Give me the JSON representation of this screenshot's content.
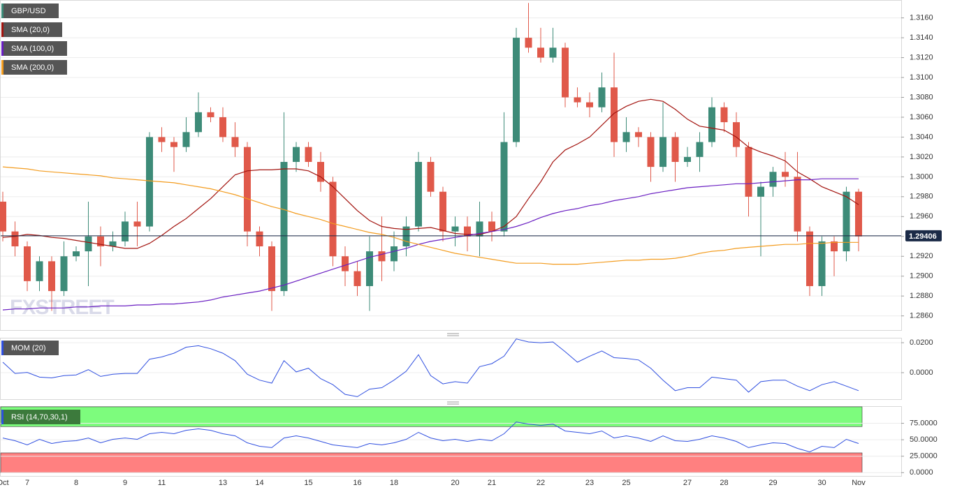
{
  "chart_data": [
    {
      "type": "candlestick",
      "title": "GBP/USD",
      "watermark": "FXSTREET",
      "categories": [
        "Oct",
        null,
        "7",
        null,
        null,
        null,
        "8",
        null,
        null,
        null,
        "9",
        null,
        null,
        "11",
        null,
        null,
        null,
        null,
        "13",
        null,
        null,
        "14",
        null,
        null,
        null,
        "15",
        null,
        null,
        null,
        "16",
        null,
        null,
        "18",
        null,
        null,
        null,
        null,
        "20",
        null,
        null,
        "21",
        null,
        null,
        null,
        "22",
        null,
        null,
        null,
        "23",
        null,
        null,
        "25",
        null,
        null,
        null,
        null,
        "27",
        null,
        null,
        "28",
        null,
        null,
        null,
        "29",
        null,
        null,
        null,
        "30",
        null,
        null,
        "Nov"
      ],
      "open": [
        1.2975,
        1.2945,
        1.293,
        1.2895,
        1.2915,
        1.2885,
        1.292,
        1.2925,
        1.294,
        1.293,
        1.2935,
        1.2955,
        1.295,
        1.304,
        1.3035,
        1.303,
        1.3045,
        1.3065,
        1.306,
        1.304,
        1.303,
        1.2945,
        1.293,
        1.2885,
        1.3015,
        1.303,
        1.3015,
        1.2995,
        1.292,
        1.2905,
        1.289,
        1.2925,
        1.2915,
        1.293,
        1.295,
        1.3015,
        1.2985,
        1.2945,
        1.295,
        1.294,
        1.2955,
        1.2945,
        1.3035,
        1.314,
        1.313,
        1.312,
        1.313,
        1.308,
        1.3075,
        1.307,
        1.309,
        1.3035,
        1.3045,
        1.304,
        1.301,
        1.304,
        1.3015,
        1.302,
        1.3035,
        1.307,
        1.3055,
        1.303,
        1.298,
        1.299,
        1.3005,
        1.3,
        1.2945,
        1.289,
        1.2935,
        1.2925,
        1.2985
      ],
      "high": [
        1.2985,
        1.2955,
        1.2935,
        1.292,
        1.292,
        1.2935,
        1.293,
        1.2975,
        1.295,
        1.2945,
        1.2965,
        1.2975,
        1.3045,
        1.305,
        1.304,
        1.306,
        1.3085,
        1.307,
        1.307,
        1.3055,
        1.3035,
        1.295,
        1.2935,
        1.3065,
        1.3035,
        1.3035,
        1.3025,
        1.3,
        1.293,
        1.2915,
        1.294,
        1.296,
        1.2945,
        1.296,
        1.3025,
        1.302,
        1.299,
        1.296,
        1.296,
        1.2975,
        1.2965,
        1.3065,
        1.315,
        1.3175,
        1.315,
        1.315,
        1.3135,
        1.309,
        1.3085,
        1.3105,
        1.3125,
        1.306,
        1.305,
        1.3045,
        1.3075,
        1.3045,
        1.303,
        1.3045,
        1.308,
        1.3075,
        1.3065,
        1.3035,
        1.2995,
        1.301,
        1.3025,
        1.3025,
        1.295,
        1.294,
        1.294,
        1.299,
        1.2988
      ],
      "low": [
        1.2935,
        1.292,
        1.2885,
        1.2885,
        1.2865,
        1.288,
        1.2915,
        1.289,
        1.291,
        1.2925,
        1.293,
        1.293,
        1.2945,
        1.3025,
        1.3005,
        1.3025,
        1.304,
        1.3055,
        1.3035,
        1.302,
        1.293,
        1.292,
        1.2865,
        1.288,
        1.3005,
        1.301,
        1.2985,
        1.291,
        1.289,
        1.288,
        1.2865,
        1.2895,
        1.2905,
        1.292,
        1.2945,
        1.298,
        1.2935,
        1.293,
        1.2925,
        1.292,
        1.2935,
        1.294,
        1.303,
        1.3125,
        1.3115,
        1.3115,
        1.307,
        1.307,
        1.306,
        1.3065,
        1.302,
        1.3025,
        1.303,
        1.2995,
        1.3005,
        1.2995,
        1.301,
        1.3005,
        1.303,
        1.3045,
        1.302,
        1.296,
        1.292,
        1.298,
        1.299,
        1.2935,
        1.288,
        1.288,
        1.29,
        1.2915,
        1.2925
      ],
      "close": [
        1.2945,
        1.293,
        1.2895,
        1.2915,
        1.2885,
        1.292,
        1.2925,
        1.294,
        1.293,
        1.2935,
        1.2955,
        1.295,
        1.304,
        1.3035,
        1.303,
        1.3045,
        1.3065,
        1.306,
        1.304,
        1.303,
        1.2945,
        1.293,
        1.2885,
        1.3015,
        1.303,
        1.3015,
        1.2995,
        1.292,
        1.2905,
        1.289,
        1.2925,
        1.2915,
        1.293,
        1.295,
        1.3015,
        1.2985,
        1.2945,
        1.295,
        1.294,
        1.2955,
        1.2945,
        1.3035,
        1.314,
        1.313,
        1.312,
        1.313,
        1.308,
        1.3075,
        1.307,
        1.309,
        1.3035,
        1.3045,
        1.304,
        1.301,
        1.304,
        1.3015,
        1.302,
        1.3035,
        1.307,
        1.3055,
        1.303,
        1.298,
        1.299,
        1.3005,
        1.3,
        1.2945,
        1.289,
        1.2935,
        1.2925,
        1.2985,
        1.294
      ],
      "up_color": "#3d8b78",
      "down_color": "#e0594a",
      "series": [
        {
          "name": "SMA (20,0)",
          "color": "#a3140f",
          "values": [
            1.2939,
            1.294,
            1.2942,
            1.2941,
            1.2939,
            1.2938,
            1.2936,
            1.2934,
            1.2932,
            1.293,
            1.2928,
            1.2928,
            1.2933,
            1.2941,
            1.295,
            1.2958,
            1.2968,
            1.2978,
            1.299,
            1.3002,
            1.3006,
            1.3007,
            1.3007,
            1.3008,
            1.3008,
            1.3006,
            1.3,
            1.299,
            1.2978,
            1.2966,
            1.2956,
            1.295,
            1.2948,
            1.2947,
            1.2948,
            1.2949,
            1.2946,
            1.2943,
            1.2942,
            1.2942,
            1.2945,
            1.295,
            1.296,
            1.2978,
            1.2995,
            1.3015,
            1.3027,
            1.3033,
            1.304,
            1.3052,
            1.3064,
            1.3071,
            1.3076,
            1.3078,
            1.3076,
            1.3068,
            1.3058,
            1.3051,
            1.3049,
            1.3047,
            1.304,
            1.303,
            1.3025,
            1.3021,
            1.3016,
            1.3005,
            1.2998,
            1.299,
            1.2985,
            1.298,
            1.2972
          ]
        },
        {
          "name": "SMA (100,0)",
          "color": "#6a1fc2",
          "values": [
            1.2866,
            1.2867,
            1.2867,
            1.2868,
            1.2868,
            1.2868,
            1.2869,
            1.2869,
            1.287,
            1.287,
            1.287,
            1.2871,
            1.2871,
            1.2872,
            1.2872,
            1.2873,
            1.2874,
            1.2876,
            1.2879,
            1.2881,
            1.2883,
            1.2885,
            1.2888,
            1.2891,
            1.2895,
            1.2899,
            1.2903,
            1.2907,
            1.2911,
            1.2915,
            1.2919,
            1.2922,
            1.2925,
            1.2928,
            1.2932,
            1.2935,
            1.2937,
            1.2939,
            1.2941,
            1.2943,
            1.2945,
            1.2947,
            1.295,
            1.2954,
            1.2959,
            1.2963,
            1.2966,
            1.2968,
            1.2971,
            1.2973,
            1.2976,
            1.2978,
            1.298,
            1.2983,
            1.2985,
            1.2987,
            1.2989,
            1.299,
            1.2991,
            1.2992,
            1.2993,
            1.2993,
            1.2994,
            1.2995,
            1.2996,
            1.2997,
            1.2997,
            1.2998,
            1.2998,
            1.2998,
            1.2998
          ]
        },
        {
          "name": "SMA (200,0)",
          "color": "#f39c1f",
          "values": [
            1.301,
            1.3009,
            1.3008,
            1.3006,
            1.3005,
            1.3004,
            1.3003,
            1.3002,
            1.3001,
            1.2999,
            1.2998,
            1.2997,
            1.2996,
            1.2995,
            1.2994,
            1.2992,
            1.299,
            1.2988,
            1.2985,
            1.2982,
            1.2978,
            1.2974,
            1.297,
            1.2967,
            1.2963,
            1.296,
            1.2957,
            1.2953,
            1.295,
            1.2947,
            1.2944,
            1.2942,
            1.2939,
            1.2935,
            1.2932,
            1.2929,
            1.2926,
            1.2923,
            1.2921,
            1.2919,
            1.2917,
            1.2915,
            1.2913,
            1.2913,
            1.2913,
            1.2912,
            1.2912,
            1.2912,
            1.2913,
            1.2914,
            1.2915,
            1.2916,
            1.2916,
            1.2917,
            1.2917,
            1.2918,
            1.292,
            1.2923,
            1.2925,
            1.2926,
            1.2928,
            1.2929,
            1.293,
            1.2931,
            1.2932,
            1.2932,
            1.2933,
            1.2933,
            1.2934,
            1.2934,
            1.2934
          ]
        }
      ],
      "last_price": 1.29406,
      "ylim": [
        1.2845,
        1.3178
      ],
      "yticks": [
        {
          "value": 1.286,
          "label": "1.2860"
        },
        {
          "value": 1.288,
          "label": "1.2880"
        },
        {
          "value": 1.29,
          "label": "1.2900"
        },
        {
          "value": 1.292,
          "label": "1.2920"
        },
        {
          "value": 1.294,
          "label": "1.2940"
        },
        {
          "value": 1.296,
          "label": "1.2960"
        },
        {
          "value": 1.298,
          "label": "1.2980"
        },
        {
          "value": 1.3,
          "label": "1.3000"
        },
        {
          "value": 1.302,
          "label": "1.3020"
        },
        {
          "value": 1.304,
          "label": "1.3040"
        },
        {
          "value": 1.306,
          "label": "1.3060"
        },
        {
          "value": 1.308,
          "label": "1.3080"
        },
        {
          "value": 1.31,
          "label": "1.3100"
        },
        {
          "value": 1.312,
          "label": "1.3120"
        },
        {
          "value": 1.314,
          "label": "1.3140"
        },
        {
          "value": 1.316,
          "label": "1.3160"
        }
      ],
      "grid": true
    },
    {
      "type": "line",
      "series": [
        {
          "name": "MOM (20)",
          "color": "#2f4fe0",
          "values": [
            0.007,
            -0.0005,
            0.0002,
            -0.003,
            -0.0035,
            -0.002,
            -0.0015,
            0.002,
            -0.0025,
            -0.001,
            -0.0005,
            -0.0005,
            0.009,
            0.0105,
            0.013,
            0.017,
            0.018,
            0.016,
            0.013,
            0.008,
            -0.001,
            -0.005,
            -0.007,
            0.008,
            0.0005,
            0.003,
            -0.004,
            -0.008,
            -0.0145,
            -0.016,
            -0.011,
            -0.01,
            -0.005,
            0.001,
            0.012,
            -0.002,
            -0.0075,
            -0.006,
            -0.007,
            0.004,
            0.006,
            0.011,
            0.0225,
            0.0205,
            0.02,
            0.0205,
            0.014,
            0.007,
            0.011,
            0.0145,
            0.01,
            0.0095,
            0.0085,
            0.003,
            -0.005,
            -0.012,
            -0.01,
            -0.01,
            -0.003,
            -0.004,
            -0.005,
            -0.013,
            -0.006,
            -0.005,
            -0.005,
            -0.009,
            -0.012,
            -0.008,
            -0.006,
            -0.009,
            -0.012
          ]
        }
      ],
      "ylim": [
        -0.0177,
        0.0233
      ],
      "yticks": [
        {
          "value": 0,
          "label": "0.0000"
        },
        {
          "value": 0.02,
          "label": "0.0200"
        }
      ],
      "grid": true
    },
    {
      "type": "line",
      "series": [
        {
          "name": "RSI (14,70,30,1)",
          "color": "#2f4fe0",
          "values": [
            52.7,
            48.5,
            42.2,
            50.6,
            44.3,
            47.5,
            48.5,
            52.7,
            45.4,
            50.6,
            52.7,
            50.6,
            59.1,
            61.2,
            59.1,
            64.3,
            66.5,
            64.3,
            59.1,
            55.9,
            45.4,
            40.1,
            38.0,
            52.7,
            55.9,
            52.7,
            47.5,
            42.2,
            40.1,
            38.0,
            44.3,
            42.2,
            45.4,
            50.6,
            61.2,
            52.7,
            48.5,
            50.6,
            47.5,
            50.6,
            48.5,
            59.1,
            77.0,
            73.8,
            71.7,
            73.8,
            63.3,
            61.2,
            59.1,
            63.3,
            52.7,
            55.9,
            52.7,
            47.5,
            55.9,
            48.5,
            47.5,
            50.6,
            55.9,
            52.7,
            47.5,
            38.0,
            42.2,
            45.4,
            44.3,
            36.9,
            31.6,
            40.1,
            38.0,
            50.6,
            44.3
          ]
        }
      ],
      "bands": [
        {
          "from": 70,
          "to": 100,
          "color": "#7dfc7d"
        },
        {
          "from": 0,
          "to": 30,
          "color": "#ff8080"
        }
      ],
      "ylim": [
        -5,
        101
      ],
      "yticks": [
        {
          "value": 0,
          "label": "0.0000"
        },
        {
          "value": 25,
          "label": "25.0000"
        },
        {
          "value": 50,
          "label": "50.0000"
        },
        {
          "value": 75,
          "label": "75.0000"
        }
      ],
      "grid": true
    }
  ]
}
